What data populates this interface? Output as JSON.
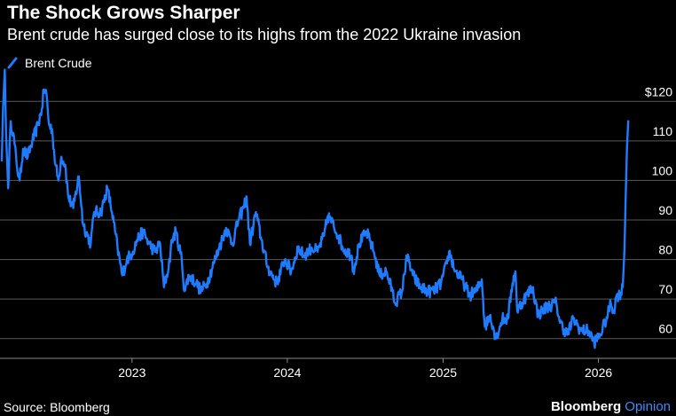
{
  "header": {
    "title": "The Shock Grows Sharper",
    "subtitle": "Brent crude has surged close to its highs from the 2022 Ukraine invasion"
  },
  "footer": {
    "source": "Source: Bloomberg",
    "brand_main": "Bloomberg",
    "brand_accent": "Opinion"
  },
  "colors": {
    "background": "#000000",
    "line": "#1f7bff",
    "grid": "#5a5a5a",
    "text": "#ffffff",
    "accent": "#3d8bff"
  },
  "chart_data": {
    "type": "line",
    "legend_placement": "top-left",
    "grid": true,
    "ylim": [
      55,
      125
    ],
    "yticks": [
      {
        "value": 120,
        "label": "$120"
      },
      {
        "value": 110,
        "label": "110"
      },
      {
        "value": 100,
        "label": "100"
      },
      {
        "value": 90,
        "label": "90"
      },
      {
        "value": 80,
        "label": "80"
      },
      {
        "value": 70,
        "label": "70"
      },
      {
        "value": 60,
        "label": "60"
      }
    ],
    "xlim": [
      "2022-03-01",
      "2026-03-20"
    ],
    "xticks": [
      {
        "value": "2023-01-01",
        "label": "2023"
      },
      {
        "value": "2024-01-01",
        "label": "2024"
      },
      {
        "value": "2025-01-01",
        "label": "2025"
      },
      {
        "value": "2026-01-01",
        "label": "2026"
      }
    ],
    "series": [
      {
        "name": "Brent Crude",
        "points": [
          [
            "2022-03-01",
            105
          ],
          [
            "2022-03-04",
            118
          ],
          [
            "2022-03-08",
            128
          ],
          [
            "2022-03-11",
            112
          ],
          [
            "2022-03-16",
            98
          ],
          [
            "2022-03-22",
            115
          ],
          [
            "2022-03-28",
            112
          ],
          [
            "2022-04-05",
            104
          ],
          [
            "2022-04-12",
            100
          ],
          [
            "2022-04-20",
            108
          ],
          [
            "2022-05-01",
            106
          ],
          [
            "2022-05-12",
            110
          ],
          [
            "2022-05-25",
            114
          ],
          [
            "2022-06-03",
            118
          ],
          [
            "2022-06-08",
            123
          ],
          [
            "2022-06-14",
            122
          ],
          [
            "2022-06-20",
            114
          ],
          [
            "2022-06-27",
            113
          ],
          [
            "2022-07-05",
            104
          ],
          [
            "2022-07-12",
            100
          ],
          [
            "2022-07-19",
            106
          ],
          [
            "2022-07-28",
            104
          ],
          [
            "2022-08-04",
            96
          ],
          [
            "2022-08-16",
            93
          ],
          [
            "2022-08-29",
            101
          ],
          [
            "2022-09-08",
            89
          ],
          [
            "2022-09-26",
            84
          ],
          [
            "2022-10-04",
            92
          ],
          [
            "2022-10-20",
            92
          ],
          [
            "2022-11-04",
            98
          ],
          [
            "2022-11-15",
            92
          ],
          [
            "2022-11-28",
            83
          ],
          [
            "2022-12-09",
            76
          ],
          [
            "2022-12-20",
            80
          ],
          [
            "2023-01-03",
            82
          ],
          [
            "2023-01-13",
            85
          ],
          [
            "2023-01-27",
            87
          ],
          [
            "2023-02-10",
            84
          ],
          [
            "2023-02-24",
            82
          ],
          [
            "2023-03-08",
            84
          ],
          [
            "2023-03-17",
            73
          ],
          [
            "2023-03-28",
            78
          ],
          [
            "2023-04-05",
            85
          ],
          [
            "2023-04-14",
            87
          ],
          [
            "2023-04-28",
            80
          ],
          [
            "2023-05-04",
            72
          ],
          [
            "2023-05-15",
            76
          ],
          [
            "2023-06-01",
            74
          ],
          [
            "2023-06-12",
            72
          ],
          [
            "2023-06-26",
            74
          ],
          [
            "2023-07-12",
            79
          ],
          [
            "2023-07-25",
            83
          ],
          [
            "2023-08-10",
            88
          ],
          [
            "2023-08-25",
            84
          ],
          [
            "2023-09-08",
            90
          ],
          [
            "2023-09-20",
            93
          ],
          [
            "2023-09-27",
            96
          ],
          [
            "2023-10-05",
            84
          ],
          [
            "2023-10-19",
            92
          ],
          [
            "2023-11-01",
            85
          ],
          [
            "2023-11-16",
            78
          ],
          [
            "2023-12-07",
            74
          ],
          [
            "2023-12-26",
            80
          ],
          [
            "2024-01-10",
            77
          ],
          [
            "2024-01-26",
            83
          ],
          [
            "2024-02-09",
            81
          ],
          [
            "2024-02-27",
            83
          ],
          [
            "2024-03-12",
            82
          ],
          [
            "2024-03-27",
            86
          ],
          [
            "2024-04-05",
            91
          ],
          [
            "2024-04-12",
            90
          ],
          [
            "2024-04-30",
            86
          ],
          [
            "2024-05-10",
            83
          ],
          [
            "2024-05-31",
            81
          ],
          [
            "2024-06-04",
            77
          ],
          [
            "2024-06-18",
            84
          ],
          [
            "2024-07-05",
            87
          ],
          [
            "2024-07-22",
            82
          ],
          [
            "2024-08-05",
            76
          ],
          [
            "2024-08-20",
            77
          ],
          [
            "2024-09-04",
            72
          ],
          [
            "2024-09-10",
            69
          ],
          [
            "2024-09-27",
            72
          ],
          [
            "2024-10-07",
            81
          ],
          [
            "2024-10-22",
            76
          ],
          [
            "2024-11-08",
            73
          ],
          [
            "2024-11-25",
            72
          ],
          [
            "2024-12-10",
            72
          ],
          [
            "2024-12-27",
            74
          ],
          [
            "2025-01-10",
            79
          ],
          [
            "2025-01-15",
            82
          ],
          [
            "2025-01-30",
            77
          ],
          [
            "2025-02-14",
            75
          ],
          [
            "2025-03-04",
            71
          ],
          [
            "2025-03-20",
            72
          ],
          [
            "2025-04-02",
            75
          ],
          [
            "2025-04-09",
            63
          ],
          [
            "2025-04-22",
            66
          ],
          [
            "2025-05-05",
            60
          ],
          [
            "2025-05-20",
            65
          ],
          [
            "2025-06-02",
            65
          ],
          [
            "2025-06-13",
            74
          ],
          [
            "2025-06-20",
            77
          ],
          [
            "2025-06-24",
            67
          ],
          [
            "2025-07-10",
            70
          ],
          [
            "2025-07-30",
            73
          ],
          [
            "2025-08-12",
            66
          ],
          [
            "2025-09-01",
            68
          ],
          [
            "2025-09-24",
            69
          ],
          [
            "2025-10-03",
            64
          ],
          [
            "2025-10-20",
            61
          ],
          [
            "2025-11-03",
            65
          ],
          [
            "2025-11-21",
            62
          ],
          [
            "2025-12-09",
            62
          ],
          [
            "2025-12-22",
            59
          ],
          [
            "2026-01-05",
            61
          ],
          [
            "2026-01-16",
            64
          ],
          [
            "2026-01-23",
            66
          ],
          [
            "2026-01-30",
            69
          ],
          [
            "2026-02-06",
            67
          ],
          [
            "2026-02-13",
            71
          ],
          [
            "2026-02-20",
            71
          ],
          [
            "2026-02-27",
            73
          ],
          [
            "2026-03-03",
            82
          ],
          [
            "2026-03-06",
            96
          ],
          [
            "2026-03-09",
            108
          ],
          [
            "2026-03-12",
            115
          ]
        ]
      }
    ]
  }
}
